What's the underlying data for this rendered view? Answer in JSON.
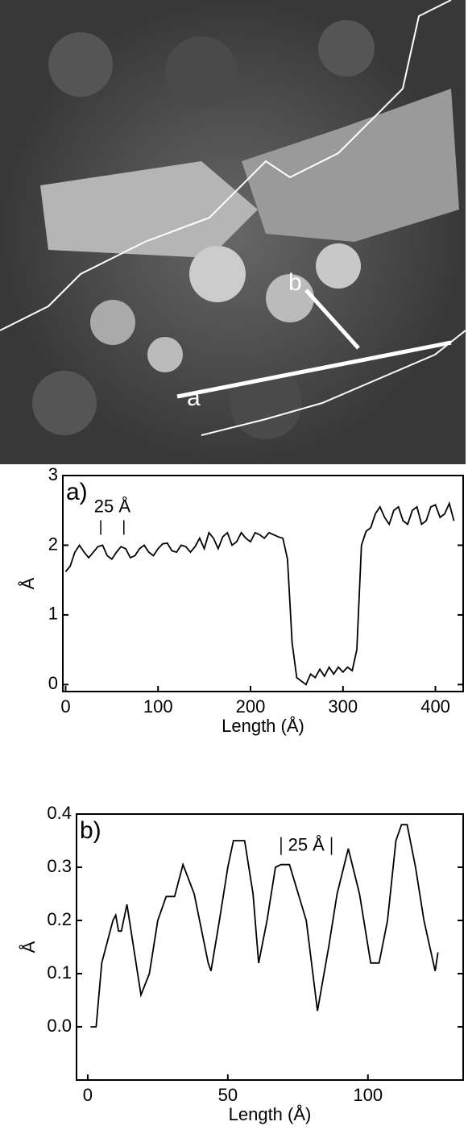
{
  "image_labels": [
    "a",
    "b"
  ],
  "chart_data": [
    {
      "type": "line",
      "panel_label": "a)",
      "annotation": "25 Å",
      "xlabel": "Length (Å)",
      "ylabel": "Å",
      "xlim": [
        -3,
        430
      ],
      "ylim": [
        -0.1,
        3.0
      ],
      "xticks": [
        0,
        100,
        200,
        300,
        400
      ],
      "yticks": [
        0,
        1,
        2,
        3
      ],
      "series": [
        {
          "color": "#000000",
          "x": [
            0,
            5,
            10,
            15,
            20,
            25,
            30,
            35,
            40,
            45,
            50,
            55,
            60,
            65,
            70,
            75,
            80,
            85,
            90,
            95,
            100,
            105,
            110,
            115,
            120,
            125,
            130,
            135,
            140,
            145,
            150,
            155,
            160,
            165,
            170,
            175,
            180,
            185,
            190,
            195,
            200,
            205,
            210,
            215,
            220,
            225,
            230,
            235,
            240,
            245,
            250,
            255,
            260,
            265,
            270,
            275,
            280,
            285,
            290,
            295,
            300,
            305,
            310,
            315,
            320,
            325,
            330,
            335,
            340,
            345,
            350,
            355,
            360,
            365,
            370,
            375,
            380,
            385,
            390,
            395,
            400,
            405,
            410,
            415,
            420
          ],
          "values": [
            1.62,
            1.7,
            1.9,
            2.0,
            1.9,
            1.82,
            1.9,
            1.98,
            2.0,
            1.85,
            1.8,
            1.9,
            1.98,
            1.95,
            1.82,
            1.85,
            1.95,
            2.0,
            1.9,
            1.85,
            1.95,
            2.02,
            2.03,
            1.92,
            1.9,
            2.0,
            1.98,
            1.9,
            1.98,
            2.1,
            1.95,
            2.18,
            2.1,
            1.95,
            2.12,
            2.18,
            2.0,
            2.05,
            2.18,
            2.1,
            2.05,
            2.18,
            2.15,
            2.1,
            2.18,
            2.15,
            2.12,
            2.1,
            1.8,
            0.6,
            0.1,
            0.05,
            0.0,
            0.15,
            0.1,
            0.22,
            0.12,
            0.25,
            0.15,
            0.25,
            0.18,
            0.25,
            0.2,
            0.5,
            2.0,
            2.2,
            2.25,
            2.45,
            2.55,
            2.4,
            2.3,
            2.5,
            2.55,
            2.35,
            2.3,
            2.5,
            2.55,
            2.3,
            2.35,
            2.55,
            2.58,
            2.4,
            2.45,
            2.6,
            2.35
          ]
        }
      ]
    },
    {
      "type": "line",
      "panel_label": "b)",
      "annotation": "25 Å",
      "xlabel": "Length (Å)",
      "ylabel": "Å",
      "xlim": [
        -4,
        134
      ],
      "ylim": [
        -0.1,
        0.4
      ],
      "xticks": [
        0,
        50,
        100
      ],
      "yticks": [
        {
          "value": 0,
          "label": "0.0"
        },
        0.1,
        0.2,
        0.3,
        0.4
      ],
      "series": [
        {
          "color": "#000000",
          "x": [
            1,
            3,
            5,
            9,
            10,
            11,
            12,
            14,
            19,
            22,
            25,
            28,
            31,
            34,
            38,
            43,
            44,
            47,
            50,
            52,
            56,
            59,
            61,
            64,
            67,
            69,
            72,
            78,
            82,
            86,
            89,
            93,
            97,
            101,
            104,
            107,
            110,
            112,
            114,
            117,
            120,
            124,
            125
          ],
          "values": [
            0,
            0,
            0.12,
            0.2,
            0.21,
            0.18,
            0.18,
            0.23,
            0.06,
            0.1,
            0.2,
            0.245,
            0.245,
            0.305,
            0.25,
            0.12,
            0.105,
            0.2,
            0.3,
            0.35,
            0.35,
            0.25,
            0.12,
            0.2,
            0.3,
            0.305,
            0.305,
            0.2,
            0.03,
            0.15,
            0.25,
            0.335,
            0.25,
            0.12,
            0.12,
            0.2,
            0.35,
            0.38,
            0.38,
            0.3,
            0.2,
            0.105,
            0.14
          ]
        }
      ]
    }
  ]
}
